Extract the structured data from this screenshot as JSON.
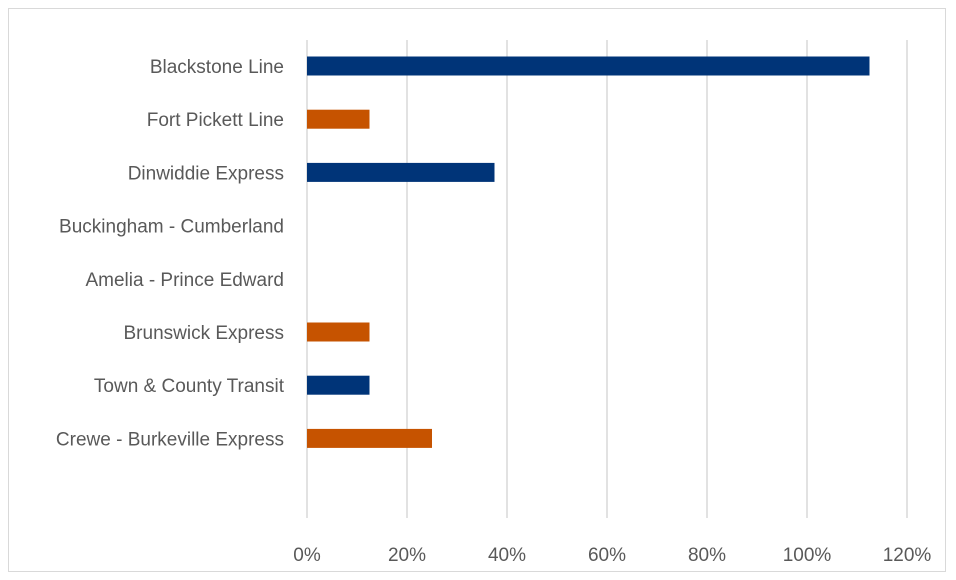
{
  "chart_data": {
    "type": "bar",
    "orientation": "horizontal",
    "title": "",
    "xlabel": "",
    "ylabel": "",
    "categories": [
      "Blackstone Line",
      "Fort Pickett Line",
      "Dinwiddie Express",
      "Buckingham - Cumberland",
      "Amelia - Prince Edward",
      "Brunswick Express",
      "Town & County Transit",
      "Crewe - Burkeville Express"
    ],
    "values": [
      112.5,
      12.5,
      37.5,
      0,
      0,
      12.5,
      12.5,
      25
    ],
    "bar_colors": [
      "#003478",
      "#c65300",
      "#003478",
      "#003478",
      "#003478",
      "#c65300",
      "#003478",
      "#c65300"
    ],
    "xlim": [
      0,
      120
    ],
    "x_ticks": [
      0,
      20,
      40,
      60,
      80,
      100,
      120
    ],
    "x_tick_labels": [
      "0%",
      "20%",
      "40%",
      "60%",
      "80%",
      "100%",
      "120%"
    ],
    "grid": "vertical",
    "legend": "none"
  }
}
